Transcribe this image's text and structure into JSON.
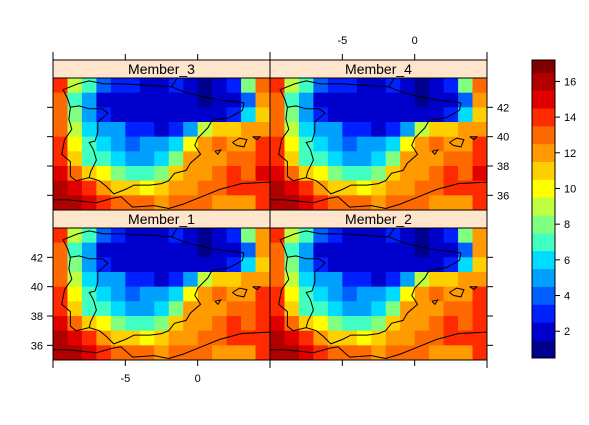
{
  "chart_data": {
    "type": "heatmap",
    "layout": "lattice 2x2 panels",
    "panels": [
      {
        "name": "Member_3",
        "row": "top",
        "col": "left"
      },
      {
        "name": "Member_4",
        "row": "top",
        "col": "right"
      },
      {
        "name": "Member_1",
        "row": "bottom",
        "col": "left"
      },
      {
        "name": "Member_2",
        "row": "bottom",
        "col": "right"
      }
    ],
    "x_ticks": [
      -5,
      0
    ],
    "y_ticks": [
      36,
      38,
      40,
      42
    ],
    "xlim": [
      -10,
      5
    ],
    "ylim": [
      35,
      44
    ],
    "grid_cell_size_deg": 1,
    "colorbar": {
      "breaks": [
        0.5,
        1.5,
        2.5,
        3.5,
        4.5,
        5.5,
        6.5,
        7.5,
        8.5,
        9.5,
        10.5,
        11.5,
        12.5,
        13.5,
        14.5,
        15.5,
        16.5,
        17.2
      ],
      "colors": [
        "#00008F",
        "#0000CC",
        "#0020FF",
        "#0060FF",
        "#00A0FF",
        "#00DCFF",
        "#40FFC0",
        "#80FF80",
        "#C0FF40",
        "#FFFF00",
        "#FFD000",
        "#FF9A00",
        "#FF6A00",
        "#FF2A00",
        "#E00000",
        "#B00000",
        "#800000"
      ],
      "tick_labels": [
        2,
        4,
        6,
        8,
        10,
        12,
        14,
        16
      ]
    },
    "grids": {
      "top": {
        "lon0": -10,
        "lat0": 44,
        "rows": [
          [
            14,
            9,
            7,
            4,
            3,
            3,
            2,
            2,
            3,
            2,
            1,
            2,
            3,
            8,
            13
          ],
          [
            13,
            7,
            5,
            2,
            2,
            2,
            2,
            2,
            2,
            2,
            1,
            2,
            2,
            4,
            12
          ],
          [
            13,
            8,
            5,
            3,
            2,
            2,
            2,
            2,
            2,
            2,
            2,
            2,
            3,
            6,
            11
          ],
          [
            13,
            9,
            6,
            5,
            5,
            3,
            3,
            2,
            3,
            5,
            9,
            11,
            11,
            12,
            12
          ],
          [
            14,
            10,
            7,
            6,
            5,
            4,
            5,
            5,
            6,
            10,
            12,
            13,
            12,
            12,
            14
          ],
          [
            14,
            11,
            7,
            7,
            6,
            5,
            5,
            6,
            8,
            12,
            12,
            12,
            13,
            13,
            14
          ],
          [
            15,
            13,
            11,
            10,
            8,
            7,
            7,
            8,
            11,
            12,
            12,
            13,
            14,
            13,
            15
          ],
          [
            16,
            15,
            14,
            12,
            11,
            11,
            10,
            11,
            12,
            12,
            13,
            13,
            14,
            14,
            14
          ],
          [
            16,
            16,
            15,
            14,
            13,
            13,
            13,
            12,
            13,
            13,
            13,
            12,
            12,
            12,
            14
          ]
        ]
      },
      "bottom": {
        "lon0": -10,
        "lat0": 44,
        "rows": [
          [
            14,
            9,
            7,
            4,
            3,
            2,
            2,
            2,
            3,
            2,
            1,
            2,
            3,
            8,
            12
          ],
          [
            13,
            7,
            5,
            2,
            2,
            2,
            2,
            2,
            2,
            2,
            1,
            2,
            2,
            4,
            12
          ],
          [
            13,
            8,
            5,
            3,
            2,
            2,
            2,
            2,
            2,
            2,
            2,
            2,
            3,
            6,
            11
          ],
          [
            13,
            9,
            6,
            5,
            5,
            3,
            3,
            2,
            3,
            5,
            9,
            11,
            11,
            12,
            12
          ],
          [
            14,
            10,
            7,
            6,
            5,
            4,
            5,
            5,
            6,
            10,
            12,
            13,
            12,
            12,
            14
          ],
          [
            14,
            11,
            7,
            7,
            6,
            5,
            5,
            6,
            8,
            12,
            12,
            12,
            13,
            13,
            14
          ],
          [
            15,
            13,
            11,
            10,
            8,
            7,
            7,
            8,
            11,
            12,
            12,
            13,
            14,
            13,
            14
          ],
          [
            16,
            15,
            14,
            12,
            11,
            11,
            10,
            11,
            12,
            12,
            13,
            13,
            14,
            14,
            14
          ],
          [
            16,
            16,
            15,
            14,
            13,
            13,
            13,
            12,
            13,
            13,
            13,
            12,
            12,
            12,
            14
          ]
        ]
      }
    },
    "coastline": [
      [
        -1.8,
        43.4
      ],
      [
        -3.5,
        43.5
      ],
      [
        -5.0,
        43.6
      ],
      [
        -6.5,
        43.6
      ],
      [
        -7.5,
        43.8
      ],
      [
        -8.3,
        43.6
      ],
      [
        -9.3,
        43.2
      ],
      [
        -9.0,
        42.6
      ],
      [
        -8.8,
        42.0
      ],
      [
        -8.9,
        41.2
      ],
      [
        -8.7,
        40.5
      ],
      [
        -9.2,
        39.8
      ],
      [
        -9.4,
        38.8
      ],
      [
        -8.8,
        38.3
      ],
      [
        -8.8,
        37.3
      ],
      [
        -8.4,
        37.0
      ],
      [
        -7.5,
        37.2
      ],
      [
        -6.8,
        37.0
      ],
      [
        -6.3,
        36.6
      ],
      [
        -5.8,
        36.1
      ],
      [
        -5.0,
        36.4
      ],
      [
        -4.4,
        36.7
      ],
      [
        -3.3,
        36.7
      ],
      [
        -2.5,
        36.8
      ],
      [
        -2.0,
        37.0
      ],
      [
        -1.6,
        37.5
      ],
      [
        -0.8,
        37.7
      ],
      [
        -0.5,
        38.2
      ],
      [
        0.2,
        38.8
      ],
      [
        -0.2,
        39.4
      ],
      [
        0.0,
        39.9
      ],
      [
        0.7,
        40.6
      ],
      [
        1.0,
        41.1
      ],
      [
        2.2,
        41.3
      ],
      [
        3.1,
        41.8
      ],
      [
        3.2,
        42.3
      ]
    ],
    "pyrenees": [
      [
        -1.8,
        43.4
      ],
      [
        -0.8,
        43.0
      ],
      [
        0.5,
        42.7
      ],
      [
        1.5,
        42.5
      ],
      [
        2.5,
        42.4
      ],
      [
        3.2,
        42.3
      ]
    ],
    "portugal_border": [
      [
        -8.8,
        42.0
      ],
      [
        -8.2,
        42.1
      ],
      [
        -7.5,
        41.9
      ],
      [
        -6.6,
        41.9
      ],
      [
        -6.2,
        41.6
      ],
      [
        -6.9,
        41.0
      ],
      [
        -6.9,
        40.3
      ],
      [
        -7.1,
        39.7
      ],
      [
        -7.5,
        39.6
      ],
      [
        -7.2,
        39.1
      ],
      [
        -7.0,
        38.4
      ],
      [
        -7.4,
        37.6
      ],
      [
        -7.5,
        37.2
      ]
    ],
    "france_coast": [
      [
        -1.8,
        43.4
      ],
      [
        -1.4,
        44.0
      ],
      [
        -1.2,
        44.3
      ]
    ],
    "africa_coast": [
      [
        -10.0,
        35.7
      ],
      [
        -9.0,
        35.7
      ],
      [
        -7.0,
        35.5
      ],
      [
        -5.9,
        35.8
      ],
      [
        -5.3,
        35.9
      ],
      [
        -4.5,
        35.2
      ],
      [
        -3.0,
        35.3
      ],
      [
        -2.0,
        35.1
      ],
      [
        -1.0,
        35.4
      ],
      [
        0.0,
        35.8
      ],
      [
        1.5,
        36.4
      ],
      [
        3.0,
        36.8
      ],
      [
        5.0,
        36.9
      ]
    ],
    "islands": [
      [
        [
          2.4,
          39.6
        ],
        [
          2.9,
          39.9
        ],
        [
          3.4,
          39.8
        ],
        [
          3.2,
          39.3
        ],
        [
          2.7,
          39.4
        ],
        [
          2.4,
          39.6
        ]
      ],
      [
        [
          3.8,
          40.0
        ],
        [
          4.3,
          40.0
        ],
        [
          4.1,
          39.8
        ],
        [
          3.8,
          40.0
        ]
      ],
      [
        [
          1.2,
          39.0
        ],
        [
          1.6,
          39.1
        ],
        [
          1.4,
          38.8
        ],
        [
          1.2,
          39.0
        ]
      ]
    ]
  }
}
